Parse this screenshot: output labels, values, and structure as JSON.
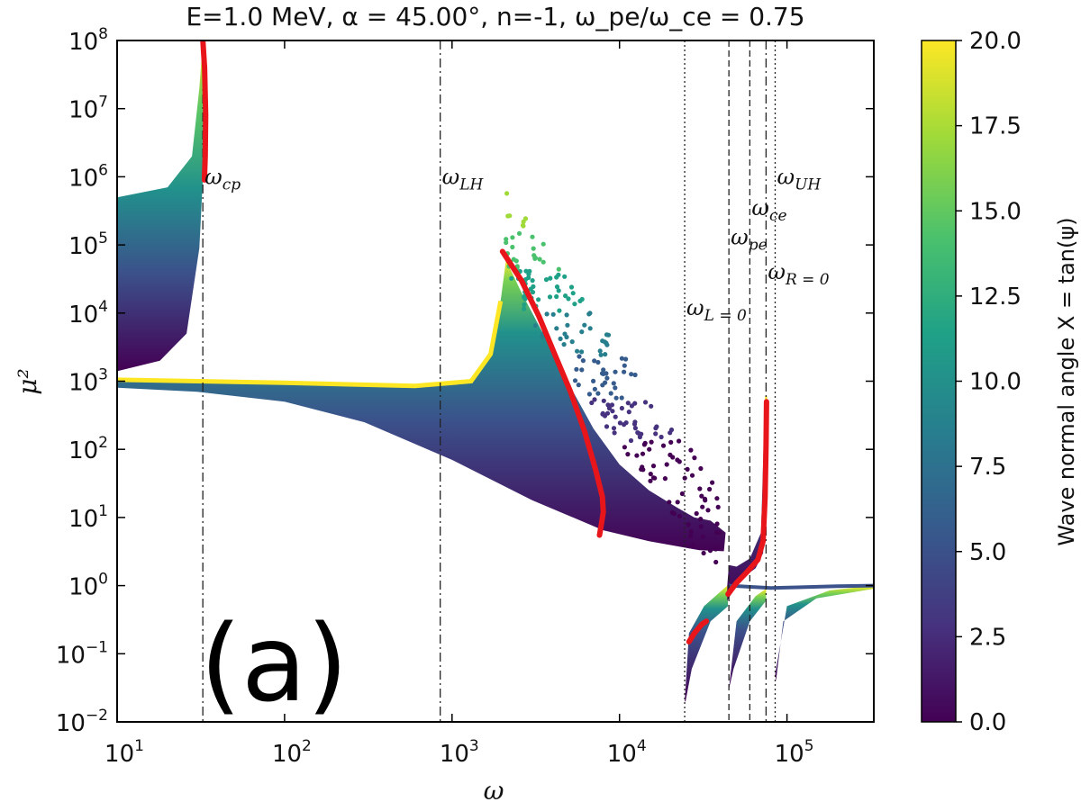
{
  "chart_data": {
    "type": "scatter",
    "title": "E=1.0 MeV, α = 45.00°, n=-1, ω_pe/ω_ce = 0.75",
    "xlabel": "ω",
    "ylabel": "μ²",
    "xscale": "log",
    "yscale": "log",
    "xlim": [
      10,
      330000
    ],
    "ylim": [
      0.01,
      100000000
    ],
    "x_ticks": [
      {
        "value": 10,
        "base": "10",
        "exp": "1"
      },
      {
        "value": 100,
        "base": "10",
        "exp": "2"
      },
      {
        "value": 1000,
        "base": "10",
        "exp": "3"
      },
      {
        "value": 10000,
        "base": "10",
        "exp": "4"
      },
      {
        "value": 100000,
        "base": "10",
        "exp": "5"
      }
    ],
    "y_ticks": [
      {
        "value": 100000000,
        "base": "10",
        "exp": "8"
      },
      {
        "value": 10000000,
        "base": "10",
        "exp": "7"
      },
      {
        "value": 1000000,
        "base": "10",
        "exp": "6"
      },
      {
        "value": 100000,
        "base": "10",
        "exp": "5"
      },
      {
        "value": 10000,
        "base": "10",
        "exp": "4"
      },
      {
        "value": 1000,
        "base": "10",
        "exp": "3"
      },
      {
        "value": 100,
        "base": "10",
        "exp": "2"
      },
      {
        "value": 10,
        "base": "10",
        "exp": "1"
      },
      {
        "value": 1,
        "base": "10",
        "exp": "0"
      },
      {
        "value": 0.1,
        "base": "10",
        "exp": "−1"
      },
      {
        "value": 0.01,
        "base": "10",
        "exp": "−2"
      }
    ],
    "colorbar": {
      "label": "Wave normal angle X = tan(ψ)",
      "range": [
        0,
        20
      ],
      "ticks": [
        "20.0",
        "17.5",
        "15.0",
        "12.5",
        "10.0",
        "7.5",
        "5.0",
        "2.5",
        "0.0"
      ],
      "colormap": [
        "#440154",
        "#46327e",
        "#365c8d",
        "#277f8e",
        "#1fa187",
        "#4ac16d",
        "#a0da39",
        "#fde725"
      ]
    },
    "vertical_lines": [
      {
        "name": "ω_cp",
        "main": "ω",
        "sub": "cp",
        "x": 32.5,
        "label_y": 1000000,
        "style": "dashdot"
      },
      {
        "name": "ω_LH",
        "main": "ω",
        "sub": "LH",
        "x": 850,
        "label_y": 1000000,
        "style": "dashdot"
      },
      {
        "name": "ω_L=0",
        "main": "ω",
        "sub": "L = 0",
        "x": 24500,
        "label_y": 12000,
        "style": "dotted"
      },
      {
        "name": "ω_pe",
        "main": "ω",
        "sub": "pe",
        "x": 45000,
        "label_y": 130000,
        "style": "dashed"
      },
      {
        "name": "ω_ce",
        "main": "ω",
        "sub": "ce",
        "x": 60000,
        "label_y": 350000,
        "style": "dashed"
      },
      {
        "name": "ω_R=0",
        "main": "ω",
        "sub": "R = 0",
        "x": 75000,
        "label_y": 40000,
        "style": "dashdot"
      },
      {
        "name": "ω_UH",
        "main": "ω",
        "sub": "UH",
        "x": 85000,
        "label_y": 1000000,
        "style": "dotted"
      }
    ],
    "resonance_curves": [
      {
        "name": "curve-cp",
        "color": "#e8151b",
        "points": [
          [
            32.5,
            100000000
          ],
          [
            33.3,
            40000000
          ],
          [
            33.8,
            8000000
          ],
          [
            33.6,
            2000000
          ],
          [
            33.2,
            900000
          ]
        ]
      },
      {
        "name": "curve-whistler",
        "color": "#e8151b",
        "points": [
          [
            2000,
            80000
          ],
          [
            2600,
            30000
          ],
          [
            3300,
            9000
          ],
          [
            4100,
            2500
          ],
          [
            5100,
            700
          ],
          [
            6200,
            180
          ],
          [
            7200,
            50
          ],
          [
            7900,
            20
          ],
          [
            8000,
            12
          ],
          [
            7800,
            8
          ],
          [
            7600,
            5.5
          ]
        ]
      },
      {
        "name": "curve-low",
        "color": "#e8151b",
        "points": [
          [
            26000,
            0.15
          ],
          [
            28000,
            0.2
          ],
          [
            31000,
            0.27
          ],
          [
            33000,
            0.3
          ]
        ]
      },
      {
        "name": "curve-high",
        "color": "#e8151b",
        "points": [
          [
            44500,
            0.75
          ],
          [
            50000,
            1.1
          ],
          [
            58000,
            1.6
          ],
          [
            67000,
            2.4
          ],
          [
            72000,
            4.5
          ],
          [
            74000,
            20
          ],
          [
            75000,
            120
          ],
          [
            75500,
            500
          ]
        ]
      }
    ],
    "panel_label": "(a)"
  }
}
